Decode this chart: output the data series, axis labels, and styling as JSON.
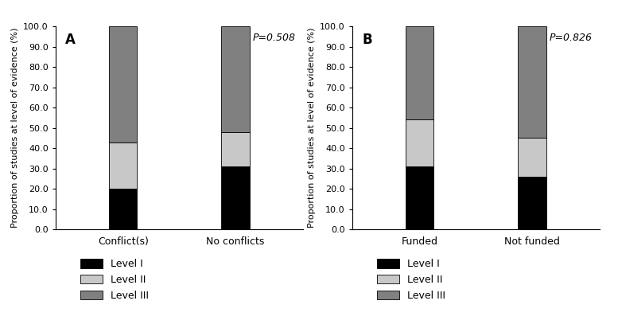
{
  "panel_A": {
    "label": "A",
    "p_value": "P=0.508",
    "categories": [
      "Conflict(s)",
      "No conflicts"
    ],
    "level_I": [
      20.0,
      31.0
    ],
    "level_II": [
      23.0,
      17.0
    ],
    "level_III": [
      57.0,
      52.0
    ],
    "ylabel": "Proportion of studies at level of evidence (%)"
  },
  "panel_B": {
    "label": "B",
    "p_value": "P=0.826",
    "categories": [
      "Funded",
      "Not funded"
    ],
    "level_I": [
      31.0,
      26.0
    ],
    "level_II": [
      23.0,
      19.0
    ],
    "level_III": [
      46.0,
      55.0
    ],
    "ylabel": "Proportion of studies at level of evidence (%)"
  },
  "colors": {
    "level_I": "#000000",
    "level_II": "#c8c8c8",
    "level_III": "#808080"
  },
  "legend_labels": [
    "Level I",
    "Level II",
    "Level III"
  ],
  "ylim": [
    0,
    100
  ],
  "yticks": [
    0.0,
    10.0,
    20.0,
    30.0,
    40.0,
    50.0,
    60.0,
    70.0,
    80.0,
    90.0,
    100.0
  ],
  "bar_width": 0.25,
  "bar_positions": [
    1.0,
    2.0
  ],
  "xlim": [
    0.4,
    2.6
  ],
  "figsize": [
    7.77,
    4.12
  ],
  "dpi": 100
}
